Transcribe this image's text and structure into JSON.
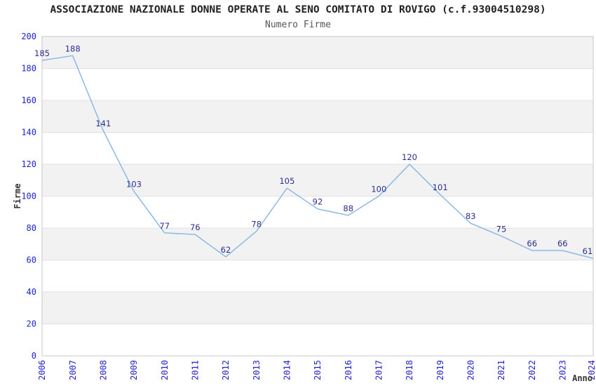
{
  "chart_data": {
    "type": "line",
    "title": "ASSOCIAZIONE NAZIONALE DONNE OPERATE AL SENO COMITATO DI ROVIGO (c.f.93004510298)",
    "subtitle": "Numero Firme",
    "xlabel": "Anno",
    "ylabel": "Firme",
    "categories": [
      "2006",
      "2007",
      "2008",
      "2009",
      "2010",
      "2011",
      "2012",
      "2013",
      "2014",
      "2015",
      "2016",
      "2017",
      "2018",
      "2019",
      "2020",
      "2021",
      "2022",
      "2023",
      "2024"
    ],
    "series": [
      {
        "name": "Numero Firme",
        "values": [
          185,
          188,
          141,
          103,
          77,
          76,
          62,
          78,
          105,
          92,
          88,
          100,
          120,
          101,
          83,
          75,
          66,
          66,
          61
        ]
      }
    ],
    "ylim": [
      0,
      200
    ],
    "ytick_step": 20,
    "grid": "horizontal gridlines with alternating shaded bands",
    "legend_position": "none",
    "data_labels_visible": true,
    "markers": "none",
    "colors": {
      "line": "#85b4e8",
      "data_label": "#2d2d8f",
      "tick_label": "#2323cc",
      "band_fill": "#f2f2f2",
      "grid_line": "#e0e0e0",
      "plot_border": "#c8c8c8",
      "title": "#222222",
      "subtitle": "#555555",
      "axis_title": "#333333",
      "background": "#ffffff"
    }
  }
}
